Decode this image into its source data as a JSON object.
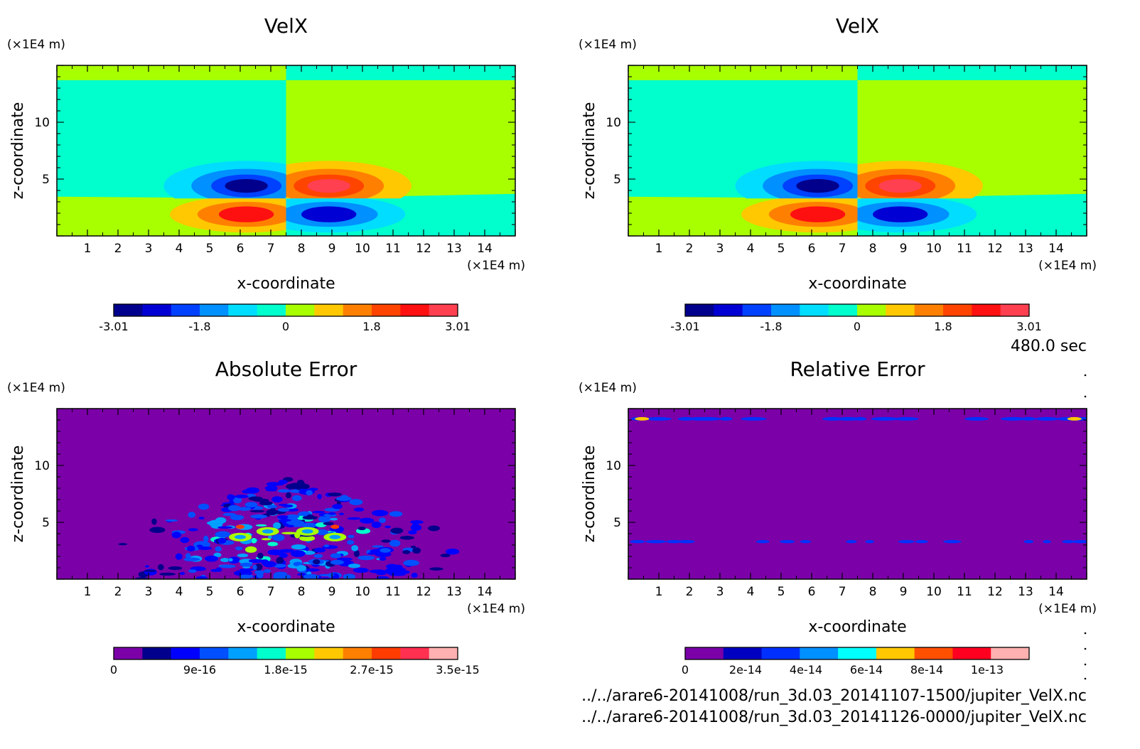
{
  "time_label": "480.0 sec",
  "files": [
    "../../arare6-20141008/run_3d.03_20141107-1500/jupiter_VelX.nc",
    "../../arare6-20141008/run_3d.03_20141126-0000/jupiter_VelX.nc"
  ],
  "chart_data": [
    {
      "type": "contour",
      "title": "VelX",
      "xlabel": "x-coordinate",
      "ylabel": "z-coordinate",
      "x_unit": "(×1E4 m)",
      "y_unit": "(×1E4 m)",
      "x_ticks": [
        1,
        2,
        3,
        4,
        5,
        6,
        7,
        8,
        9,
        10,
        11,
        12,
        13,
        14
      ],
      "y_ticks": [
        5,
        10
      ],
      "xlim": [
        0,
        15
      ],
      "ylim": [
        0,
        15
      ],
      "field": "dipole",
      "colorbar": {
        "colors": [
          "#00008c",
          "#0000d4",
          "#0040ff",
          "#0090ff",
          "#00ddff",
          "#00ffcc",
          "#a8ff00",
          "#ffc800",
          "#ff8000",
          "#ff4400",
          "#ff1010",
          "#ff4050"
        ],
        "tick_labels": [
          "-3.01",
          "-1.8",
          "0",
          "1.8",
          "3.01"
        ]
      }
    },
    {
      "type": "contour",
      "title": "VelX",
      "xlabel": "x-coordinate",
      "ylabel": "z-coordinate",
      "x_unit": "(×1E4 m)",
      "y_unit": "(×1E4 m)",
      "x_ticks": [
        1,
        2,
        3,
        4,
        5,
        6,
        7,
        8,
        9,
        10,
        11,
        12,
        13,
        14
      ],
      "y_ticks": [
        5,
        10
      ],
      "xlim": [
        0,
        15
      ],
      "ylim": [
        0,
        15
      ],
      "field": "dipole",
      "colorbar": {
        "colors": [
          "#00008c",
          "#0000d4",
          "#0040ff",
          "#0090ff",
          "#00ddff",
          "#00ffcc",
          "#a8ff00",
          "#ffc800",
          "#ff8000",
          "#ff4400",
          "#ff1010",
          "#ff4050"
        ],
        "tick_labels": [
          "-3.01",
          "-1.8",
          "0",
          "1.8",
          "3.01"
        ]
      }
    },
    {
      "type": "contour",
      "title": "Absolute Error",
      "xlabel": "x-coordinate",
      "ylabel": "z-coordinate",
      "x_unit": "(×1E4 m)",
      "y_unit": "(×1E4 m)",
      "x_ticks": [
        1,
        2,
        3,
        4,
        5,
        6,
        7,
        8,
        9,
        10,
        11,
        12,
        13,
        14
      ],
      "y_ticks": [
        5,
        10
      ],
      "xlim": [
        0,
        15
      ],
      "ylim": [
        0,
        15
      ],
      "field": "noise",
      "colorbar": {
        "colors": [
          "#7b00a8",
          "#00008c",
          "#0000ff",
          "#0050ff",
          "#00a0ff",
          "#00ffcc",
          "#a8ff00",
          "#ffc800",
          "#ff8000",
          "#ff3c00",
          "#ff3050",
          "#ffb0b0"
        ],
        "tick_labels": [
          "0",
          "9e-16",
          "1.8e-15",
          "2.7e-15",
          "3.5e-15"
        ]
      }
    },
    {
      "type": "contour",
      "title": "Relative Error",
      "xlabel": "x-coordinate",
      "ylabel": "z-coordinate",
      "x_unit": "(×1E4 m)",
      "y_unit": "(×1E4 m)",
      "x_ticks": [
        1,
        2,
        3,
        4,
        5,
        6,
        7,
        8,
        9,
        10,
        11,
        12,
        13,
        14
      ],
      "y_ticks": [
        5,
        10
      ],
      "xlim": [
        0,
        15
      ],
      "ylim": [
        0,
        15
      ],
      "field": "bands",
      "colorbar": {
        "colors": [
          "#7b00a8",
          "#0000c0",
          "#0030ff",
          "#0090ff",
          "#00ffff",
          "#ffc800",
          "#ff5000",
          "#ff0020",
          "#ffb0b0"
        ],
        "tick_labels": [
          "0",
          "2e-14",
          "4e-14",
          "6e-14",
          "8e-14",
          "1e-13"
        ]
      }
    }
  ]
}
